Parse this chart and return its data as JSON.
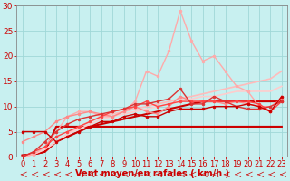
{
  "xlabel": "Vent moyen/en rafales ( km/h )",
  "ylabel": "",
  "xlim": [
    -0.5,
    23.5
  ],
  "ylim": [
    0,
    30
  ],
  "xticks": [
    0,
    1,
    2,
    3,
    4,
    5,
    6,
    7,
    8,
    9,
    10,
    11,
    12,
    13,
    14,
    15,
    16,
    17,
    18,
    19,
    20,
    21,
    22,
    23
  ],
  "yticks": [
    0,
    5,
    10,
    15,
    20,
    25,
    30
  ],
  "bg_color": "#c8f0f0",
  "grid_color": "#a0d8d8",
  "lines": [
    {
      "x": [
        0,
        1,
        2,
        3,
        4,
        5,
        6,
        7,
        8,
        9,
        10,
        11,
        12,
        13,
        14,
        15,
        16,
        17,
        18,
        19,
        20,
        21,
        22,
        23
      ],
      "y": [
        0.3,
        0.5,
        1,
        6,
        6,
        6,
        6,
        6,
        6,
        6,
        6,
        6,
        6,
        6,
        6,
        6,
        6,
        6,
        6,
        6,
        6,
        6,
        6,
        6
      ],
      "color": "#cc0000",
      "lw": 1.5,
      "marker": null,
      "ls": "-"
    },
    {
      "x": [
        0,
        1,
        2,
        3,
        4,
        5,
        6,
        7,
        8,
        9,
        10,
        11,
        12,
        13,
        14,
        15,
        16,
        17,
        18,
        19,
        20,
        21,
        22,
        23
      ],
      "y": [
        0.3,
        0.5,
        1,
        3,
        4,
        5,
        6,
        6.5,
        7,
        7.5,
        8,
        8.5,
        9,
        9.5,
        10,
        10.5,
        11,
        11,
        11,
        11,
        11,
        11,
        11,
        11
      ],
      "color": "#cc0000",
      "lw": 1.5,
      "marker": null,
      "ls": "-"
    },
    {
      "x": [
        0,
        1,
        2,
        3,
        4,
        5,
        6,
        7,
        8,
        9,
        10,
        11,
        12,
        13,
        14,
        15,
        16,
        17,
        18,
        19,
        20,
        21,
        22,
        23
      ],
      "y": [
        0,
        0.5,
        1.5,
        3,
        4.5,
        6,
        7,
        8,
        8.5,
        9,
        9.5,
        10,
        10.5,
        11,
        11.5,
        12,
        12.5,
        13,
        13.5,
        14,
        14.5,
        15,
        15.5,
        17
      ],
      "color": "#ffbbbb",
      "lw": 1.2,
      "marker": null,
      "ls": "-"
    },
    {
      "x": [
        0,
        1,
        2,
        3,
        4,
        5,
        6,
        7,
        8,
        9,
        10,
        11,
        12,
        13,
        14,
        15,
        16,
        17,
        18,
        19,
        20,
        21,
        22,
        23
      ],
      "y": [
        0,
        0.5,
        1.5,
        3,
        4.5,
        5.5,
        6.5,
        7.5,
        8,
        8.5,
        9,
        9.5,
        10,
        10.5,
        11,
        11.5,
        12,
        12,
        12.5,
        13,
        13,
        13,
        13,
        14
      ],
      "color": "#ffcccc",
      "lw": 1.2,
      "marker": null,
      "ls": "-"
    },
    {
      "x": [
        0,
        1,
        2,
        3,
        4,
        5,
        6,
        7,
        8,
        9,
        10,
        11,
        12,
        13,
        14,
        15,
        16,
        17,
        18,
        19,
        20,
        21,
        22,
        23
      ],
      "y": [
        0,
        0.5,
        2,
        5,
        8,
        9,
        9,
        8,
        8,
        9,
        11,
        17,
        16,
        21,
        29,
        23,
        19,
        20,
        17,
        14,
        13,
        10,
        9,
        12
      ],
      "color": "#ffaaaa",
      "lw": 1.0,
      "marker": "o",
      "ms": 2.0,
      "ls": "-"
    },
    {
      "x": [
        0,
        1,
        2,
        3,
        4,
        5,
        6,
        7,
        8,
        9,
        10,
        11,
        12,
        13,
        14,
        15,
        16,
        17,
        18,
        19,
        20,
        21,
        22,
        23
      ],
      "y": [
        3,
        4,
        5,
        7,
        8,
        8.5,
        9,
        8.5,
        8,
        9,
        10,
        9,
        8.5,
        10,
        12,
        11,
        11,
        11,
        10.5,
        11,
        10.5,
        10,
        10,
        11.5
      ],
      "color": "#ff8888",
      "lw": 1.0,
      "marker": "o",
      "ms": 2.0,
      "ls": "-"
    },
    {
      "x": [
        0,
        1,
        2,
        3,
        4,
        5,
        6,
        7,
        8,
        9,
        10,
        11,
        12,
        13,
        14,
        15,
        16,
        17,
        18,
        19,
        20,
        21,
        22,
        23
      ],
      "y": [
        0,
        1,
        2,
        4,
        5,
        6,
        7,
        8,
        9,
        9.5,
        10,
        11,
        10,
        10.5,
        11,
        11,
        11,
        11,
        11,
        11,
        11,
        10.5,
        9,
        11
      ],
      "color": "#ff4444",
      "lw": 1.0,
      "marker": "o",
      "ms": 2.0,
      "ls": "-"
    },
    {
      "x": [
        0,
        1,
        2,
        3,
        4,
        5,
        6,
        7,
        8,
        9,
        10,
        11,
        12,
        13,
        14,
        15,
        16,
        17,
        18,
        19,
        20,
        21,
        22,
        23
      ],
      "y": [
        0,
        1,
        3,
        5,
        6.5,
        7.5,
        8,
        8.5,
        9,
        9.5,
        10.5,
        10.5,
        11,
        11.5,
        13.5,
        10.5,
        10.5,
        12,
        11,
        10,
        9.5,
        9.5,
        10,
        11
      ],
      "color": "#dd3333",
      "lw": 1.0,
      "marker": "o",
      "ms": 2.0,
      "ls": "-"
    },
    {
      "x": [
        0,
        1,
        2,
        3,
        4,
        5,
        6,
        7,
        8,
        9,
        10,
        11,
        12,
        13,
        14,
        15,
        16,
        17,
        18,
        19,
        20,
        21,
        22,
        23
      ],
      "y": [
        5,
        5,
        5,
        3,
        4,
        5,
        6,
        7,
        7,
        8,
        8.5,
        8,
        8,
        9,
        9.5,
        9.5,
        9.5,
        10,
        10,
        10,
        10.5,
        10,
        9,
        12
      ],
      "color": "#cc0000",
      "lw": 1.0,
      "marker": "o",
      "ms": 2.0,
      "ls": "-"
    }
  ],
  "xlabel_color": "#cc0000",
  "xlabel_fontsize": 7,
  "tick_color": "#cc0000",
  "tick_fontsize": 6
}
